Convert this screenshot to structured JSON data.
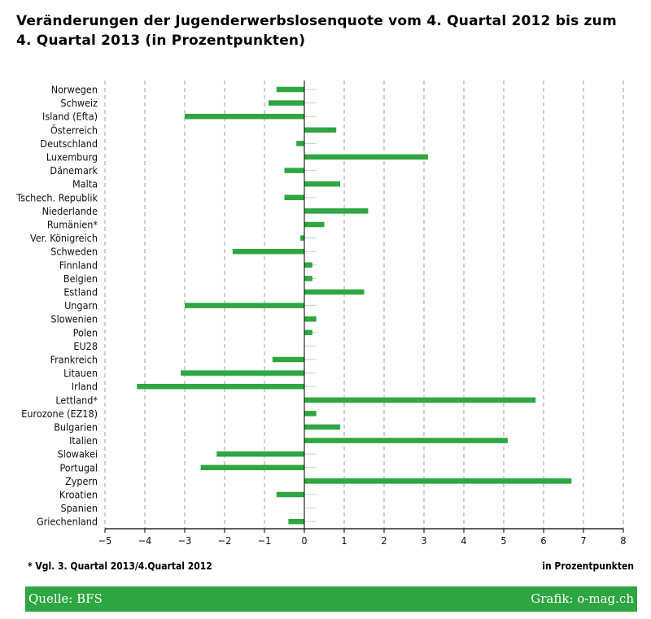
{
  "header": {
    "title": "Veränderungen der Jugenderwerbslosenquote vom 4. Quartal 2012 bis zum 4. Quartal 2013 (in Prozentpunkten)"
  },
  "footnote": "* Vgl. 3. Quartal 2013/4.Quartal 2012",
  "unit_note": "in Prozentpunkten",
  "footer": {
    "source": "Quelle: BFS",
    "credit": "Grafik: o-mag.ch"
  },
  "colors": {
    "bar": "#2ea641",
    "reference_line": "#b6dcbc",
    "grid": "#8a8a8a",
    "axis": "#000000",
    "footer_bg": "#2ea641"
  },
  "chart_data": {
    "type": "bar",
    "orientation": "horizontal",
    "categories": [
      "Norwegen",
      "Schweiz",
      "Island (Efta)",
      "Österreich",
      "Deutschland",
      "Luxemburg",
      "Dänemark",
      "Malta",
      "Tschech. Republik",
      "Niederlande",
      "Rumänien*",
      "Ver. Königreich",
      "Schweden",
      "Finnland",
      "Belgien",
      "Estland",
      "Ungarn",
      "Slowenien",
      "Polen",
      "EU28",
      "Frankreich",
      "Litauen",
      "Irland",
      "Lettland*",
      "Eurozone (EZ18)",
      "Bulgarien",
      "Italien",
      "Slowakei",
      "Portugal",
      "Zypern",
      "Kroatien",
      "Spanien",
      "Griechenland"
    ],
    "values": [
      -0.7,
      -0.9,
      -3.0,
      0.8,
      -0.2,
      3.1,
      -0.5,
      0.9,
      -0.5,
      1.6,
      0.5,
      -0.1,
      -1.8,
      0.2,
      0.2,
      1.5,
      -3.0,
      0.3,
      0.2,
      0.0,
      -0.8,
      -3.1,
      -4.2,
      5.8,
      0.3,
      0.9,
      5.1,
      -2.2,
      -2.6,
      6.7,
      -0.7,
      0.0,
      -0.4
    ],
    "xlim": [
      -5,
      8
    ],
    "xticks": [
      -5,
      -4,
      -3,
      -2,
      -1,
      0,
      1,
      2,
      3,
      4,
      5,
      6,
      7,
      8
    ],
    "tick_labels": [
      "−5",
      "−4",
      "−3",
      "−2",
      "−1",
      "0",
      "1",
      "2",
      "3",
      "4",
      "5",
      "6",
      "7",
      "8"
    ],
    "reference_line_to": 0.3,
    "xlabel": "in Prozentpunkten",
    "grid": "vertical dashed",
    "legend": "none"
  }
}
